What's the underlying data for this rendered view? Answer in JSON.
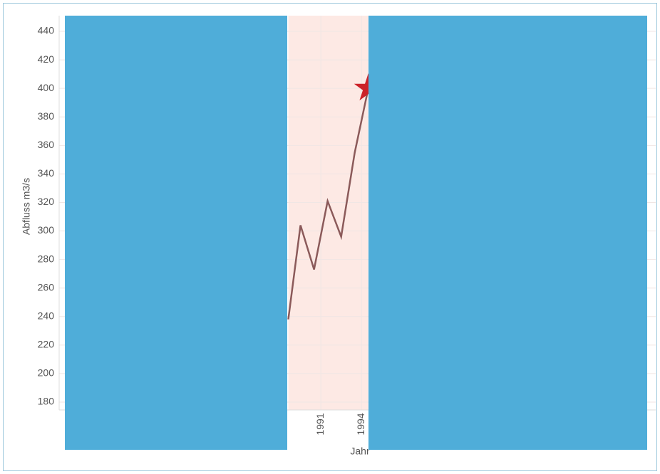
{
  "chart_data": {
    "type": "line",
    "y_label": "Abfluss m3/s",
    "x_label": "Jahr",
    "x": [
      1988.6,
      1989.5,
      1990.5,
      1991.5,
      1992.5,
      1993.5,
      1994.5
    ],
    "values": [
      238,
      304,
      273,
      321,
      296,
      355,
      400
    ],
    "color": "#8b5a5a",
    "marker_color": "#cc2229",
    "highlight": [
      1988.6,
      1994.5
    ],
    "highlight_color": "#fde9e4",
    "xlim": [
      1971.7,
      2015.7
    ],
    "xticks": [
      1991,
      1994
    ],
    "ylim": [
      174.5,
      451
    ],
    "yticks": [
      180,
      200,
      220,
      240,
      260,
      280,
      300,
      320,
      340,
      360,
      380,
      400,
      420,
      440
    ],
    "grid": true
  }
}
